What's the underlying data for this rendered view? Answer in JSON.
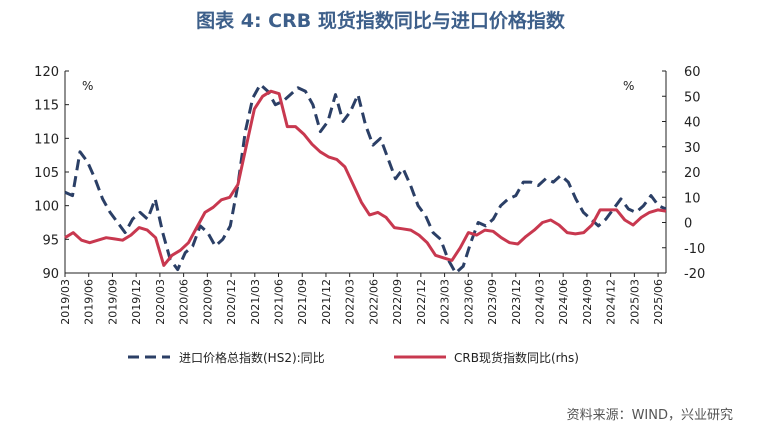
{
  "title": "图表 4:  CRB 现货指数同比与进口价格指数",
  "source": "资料来源：WIND，兴业研究",
  "chart_data": {
    "type": "line",
    "xlabel": "",
    "x_ticks": [
      "2019/03",
      "2019/06",
      "2019/09",
      "2019/12",
      "2020/03",
      "2020/06",
      "2020/09",
      "2020/12",
      "2021/03",
      "2021/06",
      "2021/09",
      "2021/12",
      "2022/03",
      "2022/06",
      "2022/09",
      "2022/12",
      "2023/03",
      "2023/06",
      "2023/09",
      "2023/12",
      "2024/03",
      "2024/06",
      "2024/09",
      "2024/12",
      "2025/03",
      "2025/06"
    ],
    "x_start": "2019/03",
    "x_end": "2025/07",
    "left_axis": {
      "min": 90,
      "max": 120,
      "ticks": [
        90,
        95,
        100,
        105,
        110,
        115,
        120
      ],
      "unit": "%"
    },
    "right_axis": {
      "min": -20,
      "max": 60,
      "ticks": [
        -20,
        -10,
        0,
        10,
        20,
        30,
        40,
        50,
        60
      ],
      "unit": "%"
    },
    "grid": false,
    "legend_position": "bottom",
    "series": [
      {
        "name": "进口价格总指数(HS2):同比",
        "axis": "left",
        "style": "dashed",
        "color": "#2b3f66",
        "values": [
          102,
          101.5,
          108,
          106.5,
          104,
          101,
          99,
          97.5,
          96,
          98,
          99,
          98,
          101,
          96,
          92,
          90.5,
          93,
          94,
          97,
          96,
          94,
          95,
          97,
          103,
          111,
          116,
          118,
          117,
          115,
          115.5,
          116.5,
          117.5,
          117,
          115,
          111,
          112.5,
          116.5,
          112.5,
          114,
          116.5,
          112,
          109,
          110,
          107,
          104,
          105.5,
          103,
          100,
          98.5,
          96,
          95,
          92,
          90,
          91,
          94.5,
          97.5,
          97,
          98,
          100,
          101,
          101.5,
          103.5,
          103.5,
          103,
          104,
          103.5,
          104.5,
          103.5,
          101,
          99,
          98,
          97,
          98,
          99.5,
          101,
          99.5,
          99,
          100,
          101.5,
          100,
          99.5
        ]
      },
      {
        "name": "CRB现货指数同比(rhs)",
        "axis": "right",
        "style": "solid",
        "color": "#c8384f",
        "values": [
          -6,
          -4,
          -7,
          -8,
          -7,
          -6,
          -6.5,
          -7,
          -5,
          -2,
          -3,
          -6,
          -17,
          -13,
          -11,
          -8,
          -2,
          4,
          6,
          9,
          10,
          15,
          30,
          45,
          50,
          52,
          51,
          38,
          38,
          35,
          31,
          28,
          26,
          25,
          22,
          15,
          8,
          3,
          4,
          2,
          -2,
          -2.5,
          -3,
          -5,
          -8,
          -13,
          -14,
          -15,
          -10,
          -4,
          -5,
          -3,
          -3.5,
          -6,
          -8,
          -8.5,
          -5.5,
          -3,
          0,
          1,
          -1,
          -4,
          -4.5,
          -4,
          -1,
          5,
          5,
          5,
          1,
          -1,
          2,
          4,
          5,
          4.5
        ]
      }
    ]
  }
}
